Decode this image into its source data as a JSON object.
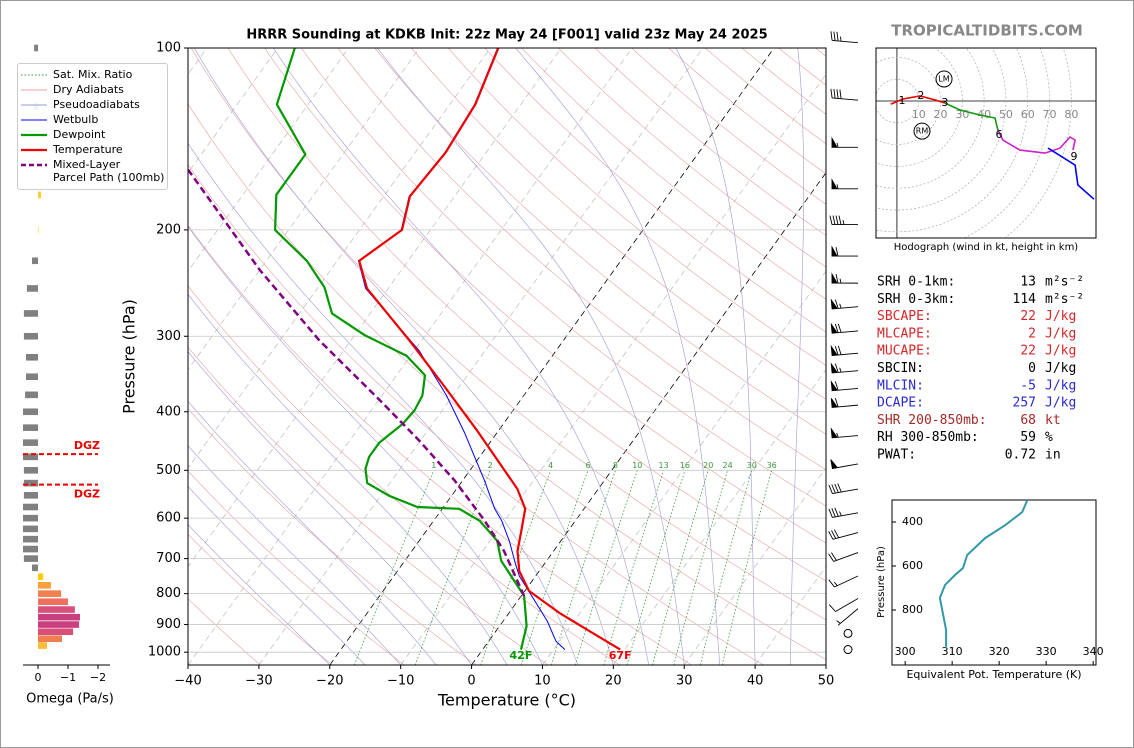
{
  "watermark": "TROPICALTIDBITS.COM",
  "chart_data": [
    {
      "type": "skewt",
      "title": "HRRR Sounding at KDKB Init: 22z May 24 [F001] valid 23z May 24 2025",
      "x_label": "Temperature (°C)",
      "y_label": "Pressure (hPa)",
      "xlim": [
        -40,
        50
      ],
      "ylim": [
        1050,
        100
      ],
      "log_y": true,
      "grid": true,
      "legend": "upper left",
      "xticks": [
        {
          "value": -40,
          "label": "−40"
        },
        {
          "value": -30,
          "label": "−30"
        },
        {
          "value": -20,
          "label": "−20"
        },
        {
          "value": -10,
          "label": "−10"
        },
        0,
        10,
        20,
        30,
        40,
        50
      ],
      "yticks": [
        100,
        200,
        300,
        400,
        500,
        600,
        700,
        800,
        900,
        1000
      ],
      "mixing_ratio_labels": [
        1,
        2,
        4,
        6,
        8,
        10,
        13,
        16,
        20,
        24,
        30,
        36
      ],
      "background_lines": [
        {
          "name": "Sat. Mix. Ratio",
          "color": "#3a9a3a",
          "style": "dotted"
        },
        {
          "name": "Dry Adiabats",
          "color": "#e8a0a0",
          "style": "solid"
        },
        {
          "name": "Pseudoadiabats",
          "color": "#9a9ad8",
          "style": "solid"
        }
      ],
      "series": [
        {
          "name": "Wetbulb",
          "color": "#0000ff",
          "linewidth": 1,
          "pressure": [
            990,
            959,
            888,
            817,
            748,
            706,
            654,
            606,
            579,
            520,
            433,
            376,
            317,
            250,
            225,
            200,
            176,
            149,
            124,
            100
          ],
          "values": [
            11.6,
            9.5,
            6.2,
            2.1,
            -2.3,
            -4.5,
            -7.3,
            -10.4,
            -12.6,
            -16.9,
            -24.6,
            -30.9,
            -39.3,
            -53.2,
            -57.0,
            -54.1,
            -56.4,
            -55.8,
            -56.5,
            -59.0
          ]
        },
        {
          "name": "Dewpoint",
          "color": "#009900",
          "linewidth": 2.2,
          "surface_label": "42F",
          "pressure": [
            990,
            905,
            807,
            706,
            654,
            606,
            579,
            575,
            551,
            525,
            497,
            475,
            450,
            419,
            398,
            376,
            348,
            323,
            299,
            275,
            249,
            225,
            200,
            175,
            150,
            124,
            100
          ],
          "values": [
            5.4,
            3.8,
            0.4,
            -6.4,
            -9.0,
            -13.5,
            -17.6,
            -23.7,
            -28.8,
            -33.2,
            -34.9,
            -35.6,
            -35.6,
            -34.2,
            -33.9,
            -34.3,
            -36.0,
            -40.6,
            -48.5,
            -55.4,
            -59.1,
            -64.3,
            -71.9,
            -75.3,
            -75.3,
            -84.4,
            -87.6
          ]
        },
        {
          "name": "Temperature",
          "color": "#ee0000",
          "linewidth": 2.2,
          "surface_label": "67F",
          "pressure": [
            990,
            944,
            861,
            792,
            734,
            680,
            630,
            579,
            537,
            486,
            430,
            362,
            305,
            250,
            225,
            200,
            176,
            149,
            124,
            100
          ],
          "values": [
            19.4,
            15.2,
            7.1,
            0.6,
            -2.8,
            -5.1,
            -6.6,
            -8.3,
            -11.4,
            -16.6,
            -23.0,
            -32.3,
            -41.7,
            -53.0,
            -56.9,
            -54.0,
            -56.3,
            -55.7,
            -56.4,
            -58.9
          ]
        },
        {
          "name": "Mixed-Layer\nParcel Path (100mb)",
          "color": "#800080",
          "linewidth": 2.5,
          "dashed": true,
          "pressure": [
            807,
            680,
            606,
            520,
            447,
            383,
            305,
            233,
            159
          ],
          "values": [
            0.4,
            -7.0,
            -12.8,
            -21.1,
            -30.1,
            -39.8,
            -54.4,
            -70.0,
            -90.3
          ]
        }
      ],
      "wind": {
        "pressure": [
          98,
          122,
          146,
          171,
          196,
          221,
          245,
          268,
          294,
          320,
          342,
          366,
          390,
          438,
          488,
          537,
          588,
          634,
          684,
          748,
          815,
          847,
          931,
          990
        ],
        "speed": [
          35,
          40,
          55,
          55,
          45,
          60,
          65,
          65,
          70,
          70,
          65,
          60,
          60,
          55,
          50,
          40,
          35,
          30,
          20,
          15,
          10,
          5,
          0,
          0
        ],
        "direction": [
          275,
          275,
          270,
          270,
          270,
          270,
          270,
          265,
          265,
          265,
          265,
          265,
          265,
          265,
          260,
          260,
          260,
          255,
          250,
          245,
          240,
          230,
          0,
          0
        ]
      }
    },
    {
      "type": "hodograph",
      "caption": "Hodograph (wind in kt, height in km)",
      "xlim": [
        -9.6,
        91.3
      ],
      "ylim": [
        -62.8,
        24.3
      ],
      "rings": [
        10,
        20,
        30,
        40,
        50,
        60,
        70,
        80
      ],
      "series": [
        {
          "color": "#ee0000",
          "u": [
            -2.8,
            2.8,
            10.6,
            17.4,
            22.0
          ],
          "v": [
            -1.4,
            0.9,
            2.3,
            0.5,
            -0.9
          ]
        },
        {
          "color": "#119911",
          "u": [
            22.0,
            28.9,
            38.1,
            45.0,
            46.3
          ],
          "v": [
            -0.9,
            -4.1,
            -6.4,
            -7.8,
            -13.3
          ]
        },
        {
          "color": "#cc22cc",
          "u": [
            46.3,
            48.6,
            56.4,
            67.9,
            74.8,
            79.4,
            81.7,
            80.7
          ],
          "v": [
            -13.3,
            -17.9,
            -22.5,
            -23.9,
            -21.6,
            -16.5,
            -17.9,
            -22.5
          ]
        },
        {
          "color": "#0000ee",
          "u": [
            69.3,
            81.7,
            83.0,
            90.4
          ],
          "v": [
            -21.6,
            -29.4,
            -38.5,
            -45.0
          ]
        }
      ],
      "height_labels": [
        {
          "km": 1,
          "u": 2.3,
          "v": 0.0
        },
        {
          "km": 2,
          "u": 11.0,
          "v": 2.3
        },
        {
          "km": 3,
          "u": 22.0,
          "v": -0.9
        },
        {
          "km": 6,
          "u": 46.8,
          "v": -15.6
        },
        {
          "km": 9,
          "u": 81.2,
          "v": -25.7
        }
      ],
      "storm_motion": [
        {
          "label": "LM",
          "u": 21.6,
          "v": 10.1
        },
        {
          "label": "RM",
          "u": 11.5,
          "v": -13.8
        }
      ]
    },
    {
      "type": "line",
      "x_label": "Equivalent Pot. Temperature (K)",
      "y_label": "Pressure (hPa)",
      "xlim": [
        297.2,
        340.6
      ],
      "ylim": [
        1050,
        300
      ],
      "xticks": [
        300,
        310,
        320,
        330,
        340
      ],
      "yticks": [
        400,
        600,
        800
      ],
      "series": [
        {
          "color": "#3399aa",
          "pressure": [
            300,
            355,
            414,
            473,
            550,
            609,
            641,
            686,
            745,
            823,
            891,
            973
          ],
          "values": [
            326.0,
            324.9,
            321.3,
            317.0,
            313.2,
            312.3,
            310.6,
            308.5,
            307.4,
            308.1,
            308.7,
            308.7
          ]
        }
      ]
    },
    {
      "type": "barh",
      "x_label": "Omega (Pa/s)",
      "xlim": [
        0.5,
        -2.4
      ],
      "ylim": [
        1050,
        100
      ],
      "log_y": true,
      "xticks": [
        0,
        {
          "value": -1,
          "label": "−1"
        },
        {
          "value": -2,
          "label": "−2"
        }
      ],
      "pressure": [
        100,
        125,
        150,
        175,
        200,
        225,
        250,
        275,
        300,
        325,
        350,
        375,
        400,
        425,
        450,
        475,
        500,
        525,
        550,
        575,
        600,
        625,
        650,
        675,
        700,
        725,
        750,
        775,
        800,
        825,
        850,
        875,
        900,
        925,
        950,
        975
      ],
      "values": [
        0.13,
        0.13,
        -0.05,
        -0.1,
        -0.03,
        0.2,
        0.37,
        0.47,
        0.47,
        0.4,
        0.4,
        0.43,
        0.5,
        0.5,
        0.5,
        0.5,
        0.47,
        0.47,
        0.47,
        0.5,
        0.5,
        0.5,
        0.5,
        0.5,
        0.47,
        0.2,
        -0.17,
        -0.43,
        -0.77,
        -1.0,
        -1.23,
        -1.4,
        -1.37,
        -1.17,
        -0.8,
        -0.3
      ],
      "colors": [
        "#808080",
        "#808080",
        "#ffee66",
        "#ffcc33",
        "#ffee66",
        "#808080",
        "#808080",
        "#808080",
        "#808080",
        "#808080",
        "#808080",
        "#808080",
        "#808080",
        "#808080",
        "#808080",
        "#808080",
        "#808080",
        "#808080",
        "#808080",
        "#808080",
        "#808080",
        "#808080",
        "#808080",
        "#808080",
        "#808080",
        "#808080",
        "#ffcc00",
        "#f9a03f",
        "#f08050",
        "#f07060",
        "#d9507a",
        "#c8407f",
        "#c8407f",
        "#d8507a",
        "#f08050",
        "#ffbb33"
      ],
      "dgz": {
        "label": "DGZ",
        "pressure": [
          470,
          528
        ],
        "color": "#ee0000"
      }
    }
  ],
  "parameters": [
    {
      "label": "SRH 0-1km:",
      "value": 13,
      "unit": "m²s⁻²",
      "color": "#000000"
    },
    {
      "label": "SRH 0-3km:",
      "value": 114,
      "unit": "m²s⁻²",
      "color": "#000000"
    },
    {
      "label": "SBCAPE:",
      "value": 22,
      "unit": "J/kg",
      "color": "#d62728"
    },
    {
      "label": "MLCAPE:",
      "value": 2,
      "unit": "J/kg",
      "color": "#d62728"
    },
    {
      "label": "MUCAPE:",
      "value": 22,
      "unit": "J/kg",
      "color": "#d62728"
    },
    {
      "label": "SBCIN:",
      "value": 0,
      "unit": "J/kg",
      "color": "#000000"
    },
    {
      "label": "MLCIN:",
      "value": -5,
      "unit": "J/kg",
      "color": "#2a2ad0"
    },
    {
      "label": "DCAPE:",
      "value": 257,
      "unit": "J/kg",
      "color": "#2a2ad0"
    },
    {
      "label": "SHR 200-850mb:",
      "value": 68,
      "unit": "kt",
      "color": "#a52a2a"
    },
    {
      "label": "RH 300-850mb:",
      "value": 59,
      "unit": "%",
      "color": "#000000"
    },
    {
      "label": "PWAT:",
      "value": 0.72,
      "unit": "in",
      "color": "#000000"
    }
  ]
}
